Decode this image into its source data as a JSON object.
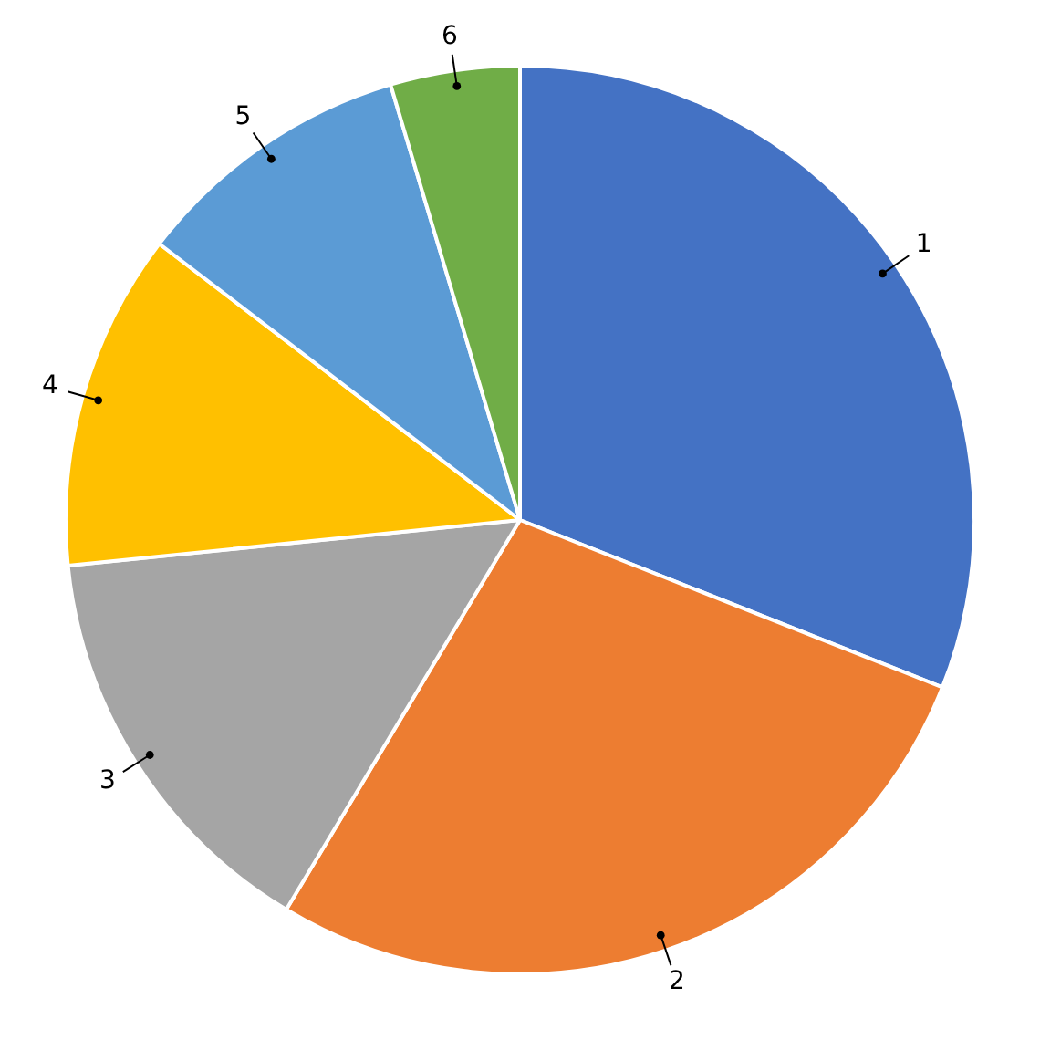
{
  "chart_data": {
    "type": "pie",
    "categories": [
      "1",
      "2",
      "3",
      "4",
      "5",
      "6"
    ],
    "values": [
      31.0,
      27.6,
      14.8,
      12.0,
      10.0,
      4.6
    ],
    "colors": [
      "#4472c4",
      "#ed7d31",
      "#a5a5a5",
      "#ffc000",
      "#5b9bd5",
      "#70ad47"
    ],
    "legend": false
  }
}
